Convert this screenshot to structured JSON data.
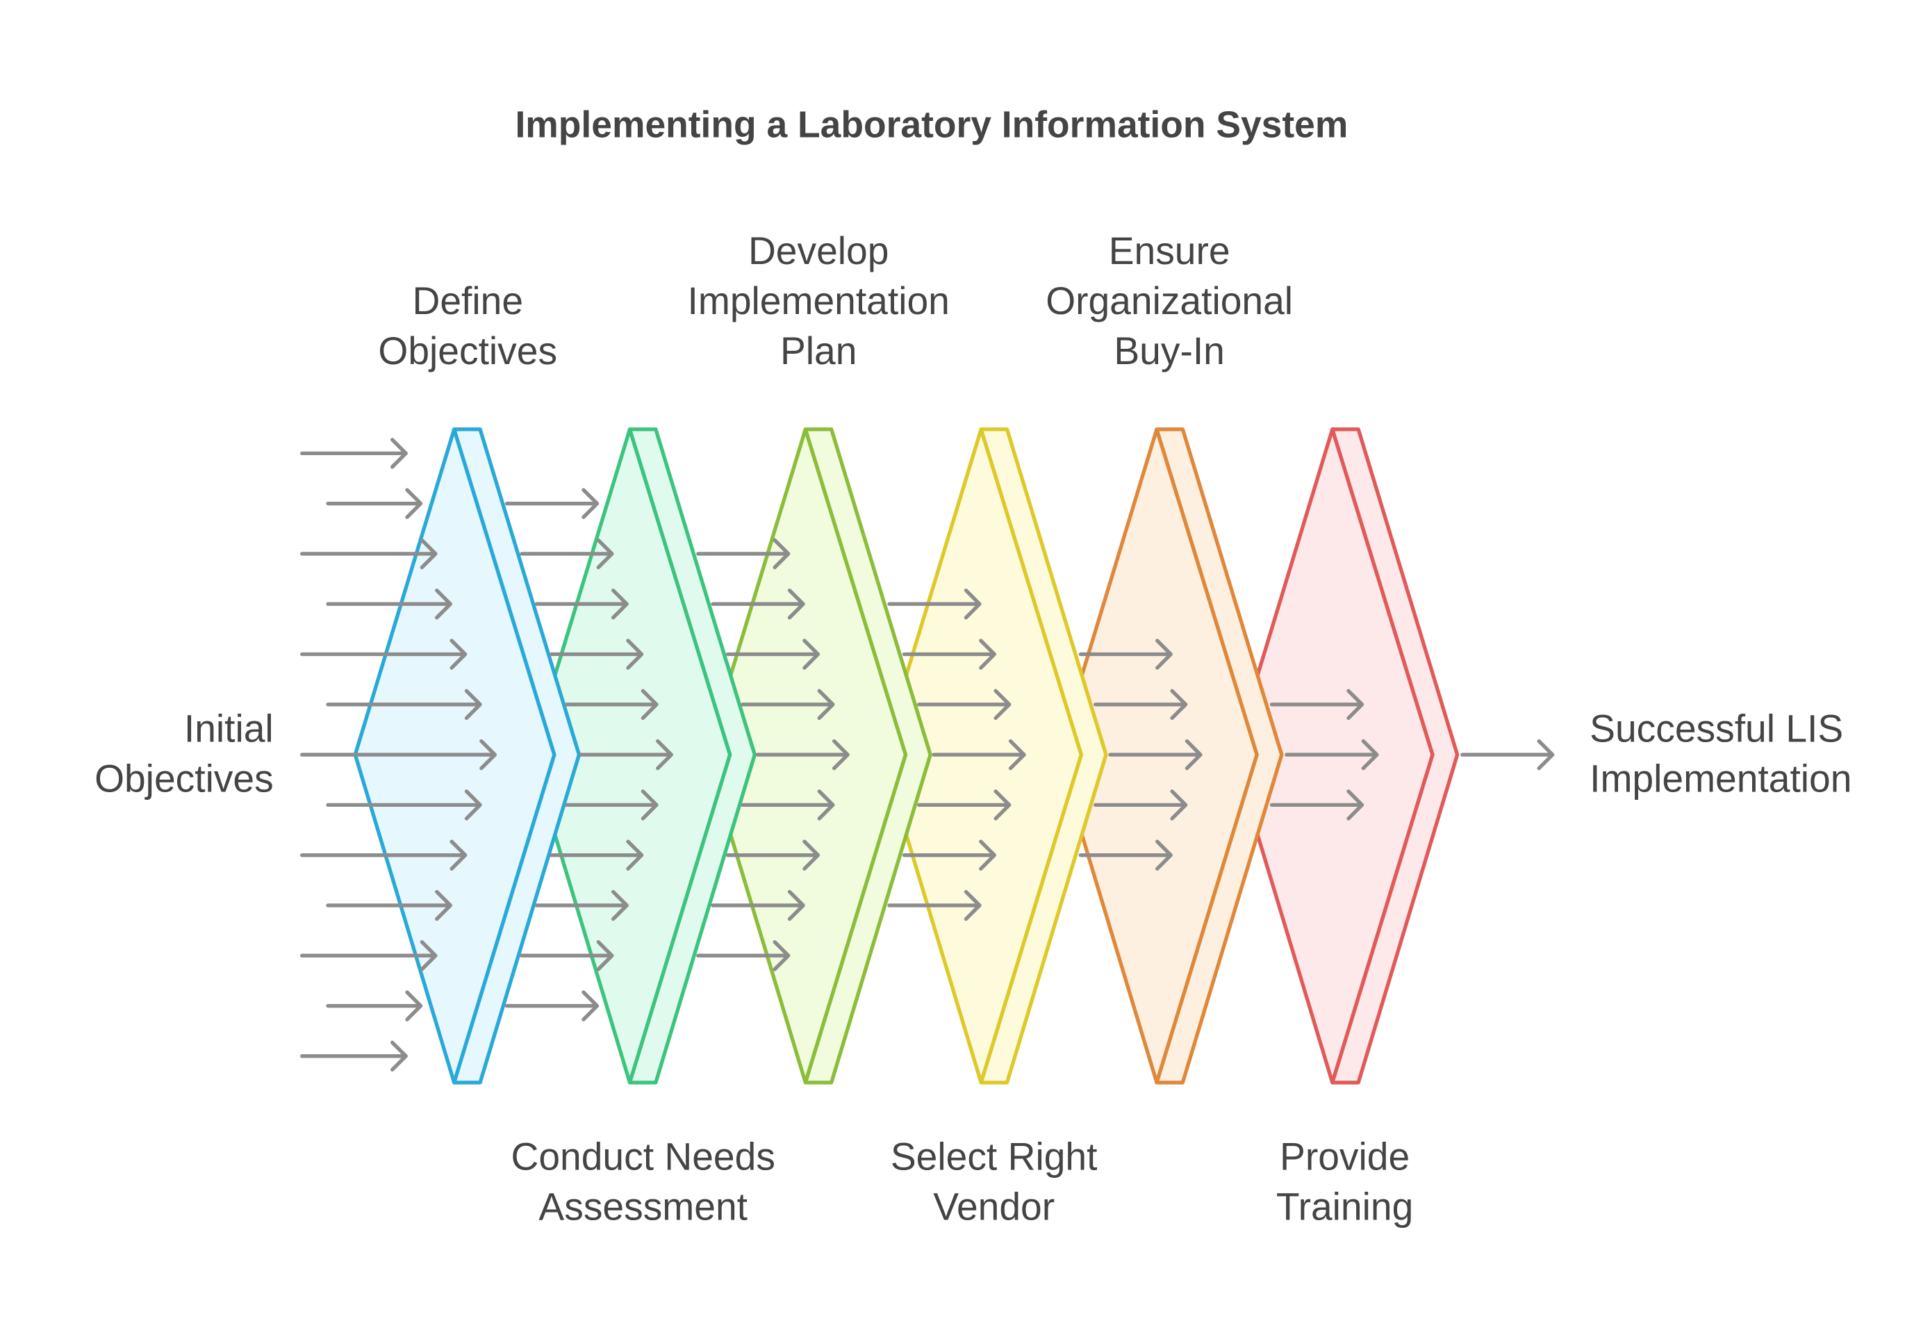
{
  "title": "Implementing a Laboratory Information System",
  "start": {
    "label": [
      "Initial",
      "Objectives"
    ]
  },
  "end": {
    "label": [
      "Successful LIS",
      "Implementation"
    ]
  },
  "stages": [
    {
      "label": [
        "Define",
        "Objectives"
      ],
      "color": "#29a9d8",
      "fill": "#e6f7fd"
    },
    {
      "label": [
        "Conduct Needs",
        "Assessment"
      ],
      "color": "#3cc47f",
      "fill": "#e0fbee"
    },
    {
      "label": [
        "Develop",
        "Implementation",
        "Plan"
      ],
      "color": "#8cbd3a",
      "fill": "#f1fbdd"
    },
    {
      "label": [
        "Select Right",
        "Vendor"
      ],
      "color": "#ddc92a",
      "fill": "#fefbdd"
    },
    {
      "label": [
        "Ensure",
        "Organizational",
        "Buy-In"
      ],
      "color": "#e0883a",
      "fill": "#fef0e1"
    },
    {
      "label": [
        "Provide",
        "Training"
      ],
      "color": "#e05a5a",
      "fill": "#fde9e9"
    }
  ]
}
